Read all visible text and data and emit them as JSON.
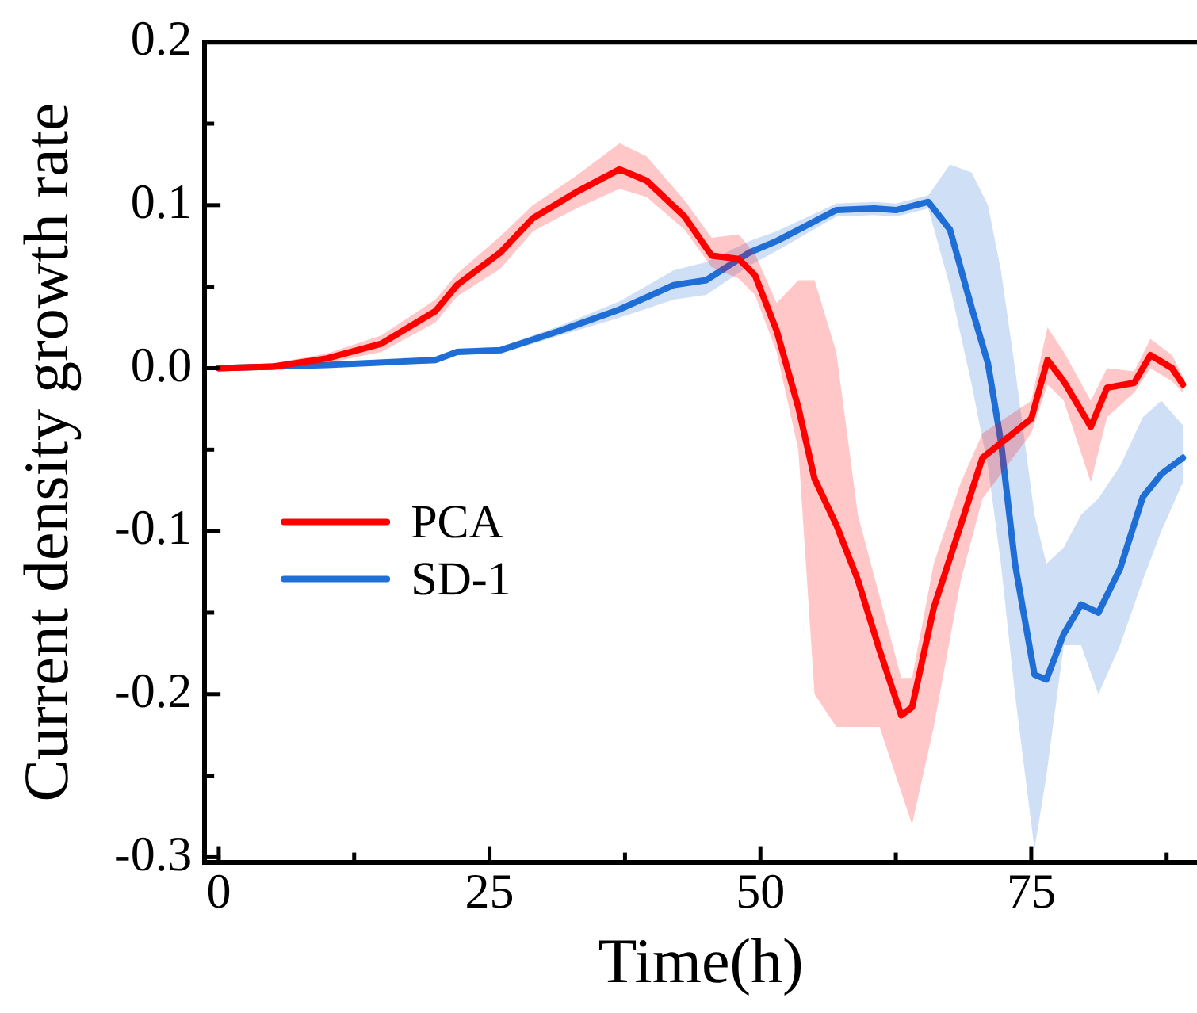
{
  "chart_data": {
    "type": "line",
    "xlabel": "Time(h)",
    "ylabel": "Current density growth rate",
    "xlim": [
      -1.3,
      90.3
    ],
    "ylim": [
      -0.303,
      0.2
    ],
    "xticks": [
      0,
      25,
      50,
      75
    ],
    "yticks": [
      {
        "value": -0.3,
        "label": "-0.3"
      },
      {
        "value": -0.2,
        "label": "-0.2"
      },
      {
        "value": -0.1,
        "label": "-0.1"
      },
      {
        "value": 0,
        "label": "0.0"
      },
      {
        "value": 0.1,
        "label": "0.1"
      },
      {
        "value": 0.2,
        "label": "0.2"
      }
    ],
    "grid": false,
    "legend": "center left",
    "marker": "none",
    "line_style": "solid",
    "series": [
      {
        "name": "PCA",
        "color": "#ff0000",
        "x": [
          0,
          5,
          10,
          15,
          20,
          22,
          26,
          29,
          33,
          37,
          39.5,
          43,
          45.5,
          48,
          49.5,
          51.5,
          53.5,
          55,
          57,
          59,
          61,
          63,
          64,
          66,
          68.5,
          70.5,
          75,
          76.5,
          78,
          80.5,
          82,
          84.5,
          86,
          88,
          89
        ],
        "values": [
          0,
          0.001,
          0.006,
          0.015,
          0.035,
          0.051,
          0.071,
          0.092,
          0.108,
          0.122,
          0.115,
          0.093,
          0.069,
          0.067,
          0.057,
          0.023,
          -0.024,
          -0.068,
          -0.096,
          -0.13,
          -0.173,
          -0.213,
          -0.208,
          -0.147,
          -0.096,
          -0.055,
          -0.031,
          0.005,
          -0.008,
          -0.036,
          -0.012,
          -0.009,
          0.008,
          0,
          -0.01
        ],
        "upper": [
          0.001,
          0.003,
          0.009,
          0.02,
          0.042,
          0.058,
          0.081,
          0.1,
          0.118,
          0.138,
          0.13,
          0.103,
          0.08,
          0.082,
          0.07,
          0.04,
          0.054,
          0.054,
          0.01,
          -0.09,
          -0.14,
          -0.19,
          -0.19,
          -0.12,
          -0.07,
          -0.04,
          -0.02,
          0.025,
          0.01,
          -0.02,
          0,
          -0.002,
          0.018,
          0.008,
          -0.005
        ],
        "lower": [
          -0.001,
          -0.001,
          0.003,
          0.01,
          0.028,
          0.044,
          0.061,
          0.084,
          0.098,
          0.11,
          0.105,
          0.085,
          0.062,
          0.055,
          0.045,
          0.01,
          -0.05,
          -0.2,
          -0.22,
          -0.22,
          -0.22,
          -0.26,
          -0.28,
          -0.22,
          -0.13,
          -0.08,
          -0.04,
          -0.01,
          -0.02,
          -0.07,
          -0.03,
          -0.015,
          0,
          -0.008,
          -0.015
        ]
      },
      {
        "name": "SD-1",
        "color": "#1f6fd6",
        "x": [
          0,
          10,
          20,
          22,
          26,
          31.5,
          37,
          42,
          45,
          49,
          51.5,
          57,
          60.5,
          62.5,
          65.5,
          67.5,
          69.5,
          71,
          72.2,
          73.5,
          75.3,
          76.4,
          78,
          79.6,
          81.2,
          83.2,
          85.3,
          87,
          89
        ],
        "values": [
          0,
          0.002,
          0.005,
          0.01,
          0.011,
          0.023,
          0.036,
          0.051,
          0.054,
          0.071,
          0.078,
          0.097,
          0.098,
          0.097,
          0.102,
          0.085,
          0.037,
          0.003,
          -0.045,
          -0.12,
          -0.188,
          -0.191,
          -0.163,
          -0.145,
          -0.15,
          -0.123,
          -0.079,
          -0.065,
          -0.055
        ],
        "upper": [
          0.001,
          0.003,
          0.007,
          0.012,
          0.013,
          0.026,
          0.041,
          0.06,
          0.065,
          0.078,
          0.084,
          0.101,
          0.102,
          0.101,
          0.106,
          0.125,
          0.12,
          0.1,
          0.06,
          0,
          -0.09,
          -0.12,
          -0.11,
          -0.09,
          -0.08,
          -0.06,
          -0.03,
          -0.02,
          -0.035
        ],
        "lower": [
          -0.001,
          0.001,
          0.003,
          0.008,
          0.009,
          0.02,
          0.031,
          0.042,
          0.045,
          0.063,
          0.072,
          0.093,
          0.094,
          0.093,
          0.098,
          0.05,
          -0.01,
          -0.06,
          -0.12,
          -0.2,
          -0.295,
          -0.25,
          -0.17,
          -0.17,
          -0.2,
          -0.17,
          -0.13,
          -0.1,
          -0.07
        ]
      }
    ]
  }
}
